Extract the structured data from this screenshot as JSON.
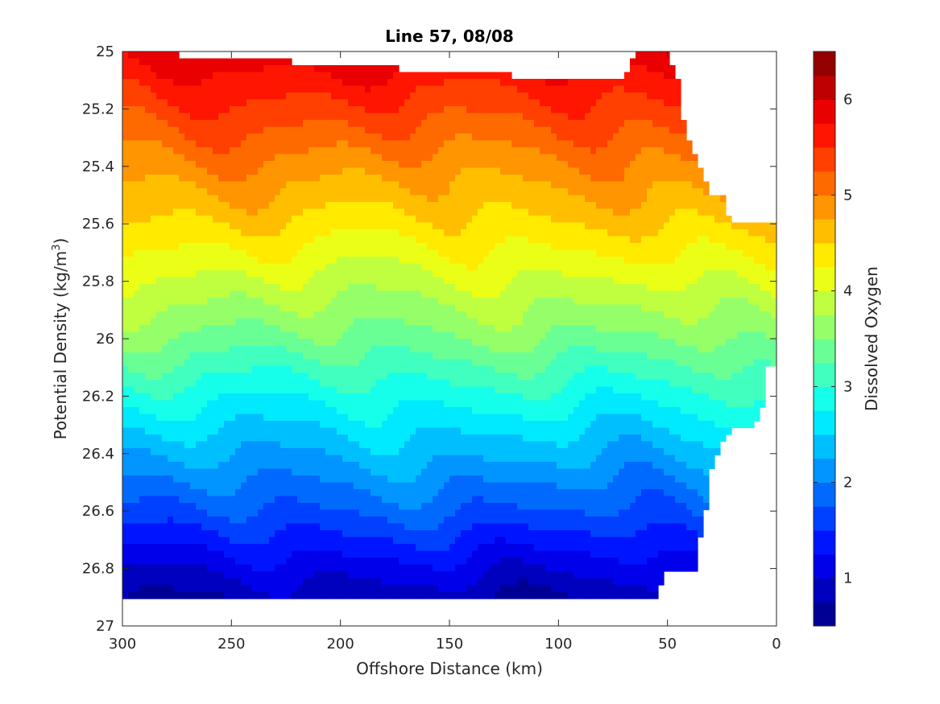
{
  "chart_data": {
    "type": "heatmap",
    "title": "Line 57, 08/08",
    "xlabel": "Offshore Distance (km)",
    "ylabel": "Potential Density (kg/m",
    "ylabel_sup": "3",
    "ylabel_close": ")",
    "colorbar_label": "Dissolved Oxygen",
    "xlim": [
      300,
      0
    ],
    "ylim": [
      25,
      27
    ],
    "x_direction": "reversed",
    "y_direction": "reversed",
    "xticks": [
      "300",
      "250",
      "200",
      "150",
      "100",
      "50",
      "0"
    ],
    "yticks": [
      "25",
      "25.2",
      "25.4",
      "25.6",
      "25.8",
      "26",
      "26.2",
      "26.4",
      "26.6",
      "26.8",
      "27"
    ],
    "colorbar_range": [
      0.5,
      6.5
    ],
    "colorbar_ticks": [
      "1",
      "2",
      "3",
      "4",
      "5",
      "6"
    ],
    "colormap": "jet",
    "contour_levels": [
      0.5,
      0.75,
      1.0,
      1.25,
      1.5,
      1.75,
      2.0,
      2.25,
      2.5,
      2.75,
      3.0,
      3.25,
      3.5,
      3.75,
      4.0,
      4.25,
      4.5,
      4.75,
      5.0,
      5.25,
      5.5,
      5.75,
      6.0,
      6.25,
      6.5
    ],
    "grid": false,
    "data_coverage": {
      "bottom_density_by_distance": {
        "distance_km": [
          300,
          56,
          50,
          35,
          35,
          30,
          30,
          20,
          10,
          5,
          5
        ],
        "density": [
          26.9,
          26.9,
          26.8,
          26.8,
          26.7,
          26.5,
          26.45,
          26.3,
          26.3,
          26.2,
          26.1
        ]
      },
      "top_density_by_distance": {
        "distance_km": [
          300,
          85,
          70,
          65,
          50,
          45,
          45,
          30,
          25,
          20,
          5,
          0
        ],
        "density": [
          25.0,
          25.1,
          25.1,
          25.0,
          25.0,
          25.1,
          25.2,
          25.5,
          25.5,
          25.6,
          25.6,
          25.6
        ]
      }
    },
    "oxygen_vs_density_profile": {
      "density": [
        25.0,
        25.2,
        25.4,
        25.6,
        25.8,
        26.0,
        26.2,
        26.4,
        26.6,
        26.8,
        26.9
      ],
      "oxygen": [
        5.9,
        5.4,
        4.9,
        4.45,
        3.95,
        3.45,
        2.85,
        2.3,
        1.75,
        1.1,
        0.8
      ]
    }
  }
}
